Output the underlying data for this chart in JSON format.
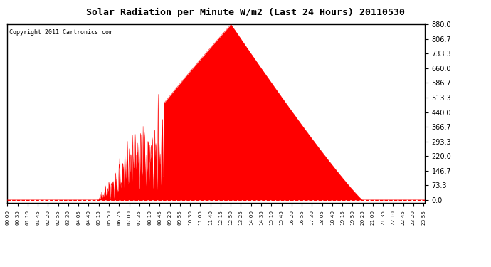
{
  "title": "Solar Radiation per Minute W/m2 (Last 24 Hours) 20110530",
  "copyright": "Copyright 2011 Cartronics.com",
  "background_color": "#ffffff",
  "fill_color": "#ff0000",
  "line_color": "#ff0000",
  "grid_color": "#c0c0c0",
  "dashed_line_color": "#ff0000",
  "y_ticks": [
    0.0,
    73.3,
    146.7,
    220.0,
    293.3,
    366.7,
    440.0,
    513.3,
    586.7,
    660.0,
    733.3,
    806.7,
    880.0
  ],
  "y_max": 880.0,
  "x_labels": [
    "00:00",
    "00:35",
    "01:10",
    "01:45",
    "02:20",
    "02:55",
    "03:30",
    "04:05",
    "04:40",
    "05:15",
    "05:50",
    "06:25",
    "07:00",
    "07:35",
    "08:10",
    "08:45",
    "09:20",
    "09:55",
    "10:30",
    "11:05",
    "11:40",
    "12:15",
    "12:50",
    "13:25",
    "14:00",
    "14:35",
    "15:10",
    "15:45",
    "16:20",
    "16:55",
    "17:30",
    "18:05",
    "18:40",
    "19:15",
    "19:50",
    "20:25",
    "21:00",
    "21:35",
    "22:10",
    "22:45",
    "23:20",
    "23:55"
  ]
}
